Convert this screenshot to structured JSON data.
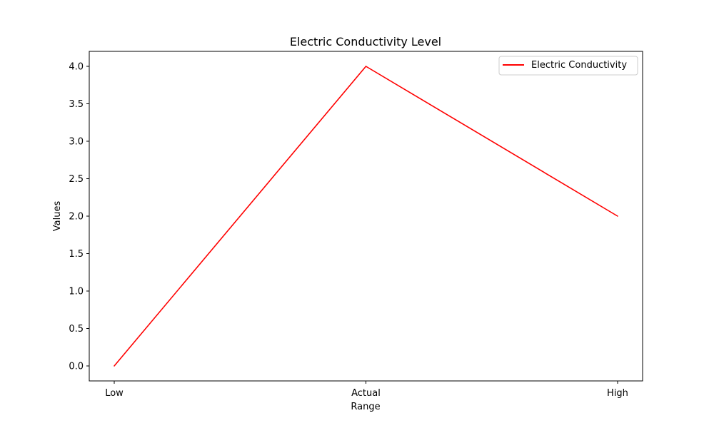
{
  "chart_data": {
    "type": "line",
    "title": "Electric Conductivity Level",
    "xlabel": "Range",
    "ylabel": "Values",
    "categories": [
      "Low",
      "Actual",
      "High"
    ],
    "series": [
      {
        "name": "Electric Conductivity",
        "values": [
          0.0,
          4.0,
          2.0
        ],
        "color": "#ff0000"
      }
    ],
    "ylim": [
      -0.2,
      4.2
    ],
    "yticks": [
      "0.0",
      "0.5",
      "1.0",
      "1.5",
      "2.0",
      "2.5",
      "3.0",
      "3.5",
      "4.0"
    ],
    "grid": false,
    "legend": "top-right"
  }
}
